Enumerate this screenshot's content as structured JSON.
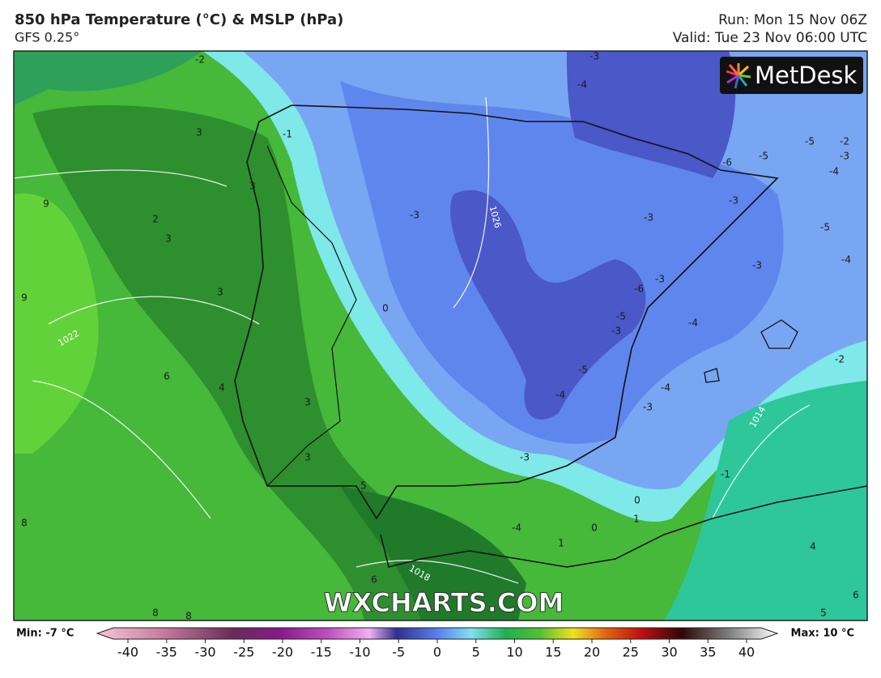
{
  "header": {
    "title": "850 hPa Temperature (°C) & MSLP (hPa)",
    "subtitle": "GFS 0.25°",
    "run": "Run: Mon 15 Nov 06Z",
    "valid": "Valid: Tue 23 Nov 06:00 UTC"
  },
  "logo": "MetDesk",
  "watermark": "WXCHARTS.COM",
  "map": {
    "temperature_labels": [
      -2,
      -1,
      3,
      2,
      3,
      3,
      9,
      9,
      3,
      6,
      4,
      3,
      3,
      0,
      -3,
      -3,
      -3,
      -3,
      -5,
      -5,
      -4,
      -2,
      -3,
      -5,
      -4,
      -4,
      -2,
      -6,
      -5,
      -3,
      -5,
      -4,
      -3,
      -4,
      -3,
      -1,
      0,
      1,
      0,
      1,
      -4,
      5,
      6,
      8,
      8,
      8,
      4,
      5,
      6,
      -3,
      -4,
      -6,
      -3
    ],
    "pressure_labels": [
      "1026",
      "1022",
      "1018",
      "1014"
    ]
  },
  "colorbar": {
    "min_label": "Min: -7 °C",
    "max_label": "Max: 10 °C",
    "range": [
      -40,
      40
    ],
    "ticks": [
      -40,
      -35,
      -30,
      -25,
      -20,
      -15,
      -10,
      -5,
      0,
      5,
      10,
      15,
      20,
      25,
      30,
      35,
      40
    ]
  }
}
